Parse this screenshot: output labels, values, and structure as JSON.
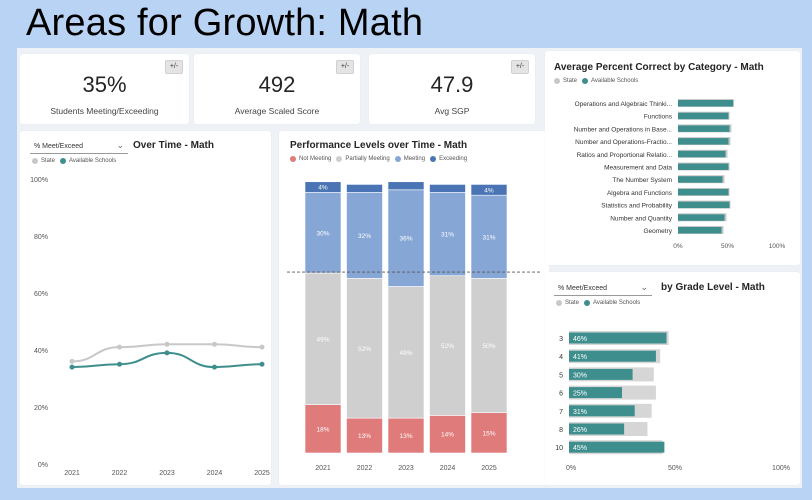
{
  "page": {
    "title": "Areas for Growth:  Math"
  },
  "kpis": [
    {
      "value": "35%",
      "label": "Students Meeting/Exceeding",
      "toggle": "+/-"
    },
    {
      "value": "492",
      "label": "Average Scaled Score",
      "toggle": "+/-"
    },
    {
      "value": "47.9",
      "label": "Avg SGP",
      "toggle": "+/-"
    }
  ],
  "over_time": {
    "dropdown": "% Meet/Exceed",
    "title": "Over Time - Math",
    "legend": [
      "State",
      "Available Schools"
    ]
  },
  "performance": {
    "title": "Performance Levels over Time - Math",
    "legend": [
      "Not Meeting",
      "Partially Meeting",
      "Meeting",
      "Exceeding"
    ]
  },
  "category": {
    "title": "Average Percent Correct by Category - Math",
    "legend": [
      "State",
      "Available Schools"
    ]
  },
  "grade": {
    "dropdown": "% Meet/Exceed",
    "title": "by Grade Level - Math",
    "legend": [
      "State",
      "Available Schools"
    ]
  },
  "colors": {
    "state": "#c8c8c8",
    "schools": "#3f8e8e",
    "not_meeting": "#e07b7b",
    "partially": "#cfcfcf",
    "meeting": "#86a7d6",
    "exceeding": "#4a74b4"
  },
  "chart_data": [
    {
      "type": "line",
      "x": [
        "2021",
        "2022",
        "2023",
        "2024",
        "2025"
      ],
      "y_ticks": [
        "0%",
        "20%",
        "40%",
        "60%",
        "80%",
        "100%"
      ],
      "ylim": [
        0,
        100
      ],
      "series": [
        {
          "name": "State",
          "values": [
            36,
            41,
            42,
            42,
            41
          ]
        },
        {
          "name": "Available Schools",
          "values": [
            34,
            35,
            39,
            34,
            35
          ]
        }
      ]
    },
    {
      "type": "bar",
      "stacked": true,
      "categories": [
        "2021",
        "2022",
        "2023",
        "2024",
        "2025"
      ],
      "series": [
        {
          "name": "Not Meeting",
          "values": [
            18,
            13,
            13,
            14,
            15
          ],
          "labels": [
            "18%",
            "13%",
            "13%",
            "14%",
            "15%"
          ]
        },
        {
          "name": "Partially Meeting",
          "values": [
            49,
            52,
            49,
            52,
            50
          ],
          "labels": [
            "49%",
            "52%",
            "49%",
            "52%",
            "50%"
          ]
        },
        {
          "name": "Meeting",
          "values": [
            30,
            32,
            36,
            31,
            31
          ],
          "labels": [
            "30%",
            "32%",
            "36%",
            "31%",
            "31%"
          ]
        },
        {
          "name": "Exceeding",
          "values": [
            4,
            3,
            3,
            3,
            4
          ],
          "labels": [
            "4%",
            "",
            "",
            "",
            "4%"
          ]
        }
      ]
    },
    {
      "type": "bar",
      "orientation": "horizontal",
      "categories": [
        "Operations and Algebraic Thinki...",
        "Functions",
        "Number and Operations in Base...",
        "Number and Operations-Fractio...",
        "Ratios and Proportional Relatio...",
        "Measurement and Data",
        "The Number System",
        "Algebra and Functions",
        "Statistics and Probability",
        "Number and Quantity",
        "Geometry"
      ],
      "x_ticks": [
        "0%",
        "50%",
        "100%"
      ],
      "xlim": [
        0,
        100
      ],
      "series": [
        {
          "name": "State",
          "values": [
            56,
            52,
            54,
            53,
            50,
            52,
            47,
            52,
            53,
            49,
            46
          ]
        },
        {
          "name": "Available Schools",
          "values": [
            56,
            51,
            52,
            51,
            48,
            51,
            45,
            51,
            52,
            47,
            44
          ]
        }
      ]
    },
    {
      "type": "bar",
      "orientation": "horizontal",
      "categories": [
        "3",
        "4",
        "5",
        "6",
        "7",
        "8",
        "10"
      ],
      "x_ticks": [
        "0%",
        "50%",
        "100%"
      ],
      "xlim": [
        0,
        100
      ],
      "series": [
        {
          "name": "State",
          "values": [
            47,
            43,
            40,
            41,
            39,
            37,
            44
          ]
        },
        {
          "name": "Available Schools",
          "values": [
            46,
            41,
            30,
            25,
            31,
            26,
            45
          ],
          "labels": [
            "46%",
            "41%",
            "30%",
            "25%",
            "31%",
            "26%",
            "45%"
          ]
        }
      ]
    }
  ]
}
